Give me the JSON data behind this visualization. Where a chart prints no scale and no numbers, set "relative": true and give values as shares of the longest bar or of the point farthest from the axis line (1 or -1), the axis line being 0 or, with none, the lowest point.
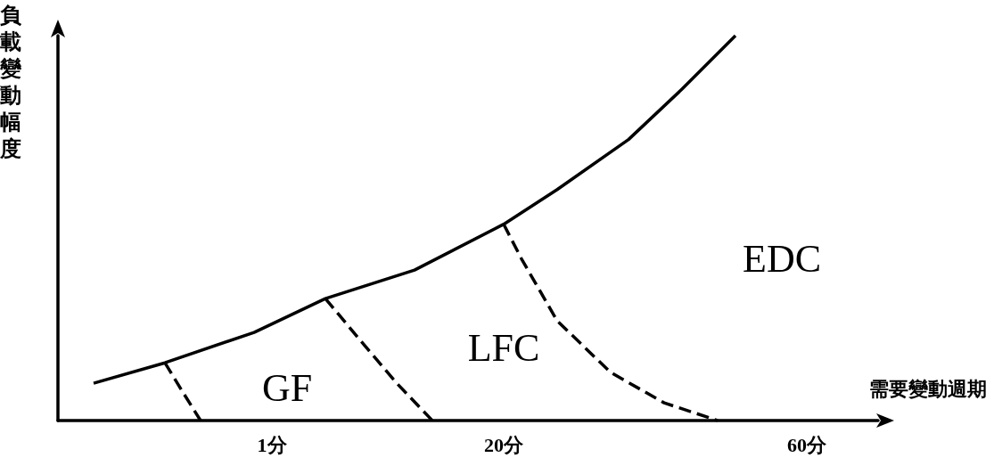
{
  "chart_data": {
    "type": "line",
    "relative": true,
    "xlabel": "需要變動週期",
    "ylabel": "負載變動幅度",
    "grid": false,
    "marker": "none",
    "categories": [
      null,
      null,
      null,
      null,
      null,
      null,
      null,
      null,
      null,
      null,
      null,
      null,
      "1分",
      null,
      null,
      null,
      null,
      null,
      null,
      null,
      null,
      null,
      null,
      null,
      null,
      "20分",
      null,
      null,
      null,
      null,
      null,
      null,
      null,
      null,
      null,
      null,
      null,
      null,
      null,
      null,
      null,
      null,
      "60分",
      null,
      null,
      null,
      null
    ],
    "series": [
      {
        "color": "#000000",
        "line_style": "solid",
        "values": [
          null,
          null,
          0.097,
          null,
          null,
          null,
          0.15,
          null,
          null,
          null,
          null,
          0.229,
          null,
          null,
          null,
          0.317,
          null,
          null,
          null,
          null,
          0.391,
          null,
          null,
          null,
          null,
          0.51,
          null,
          null,
          0.6,
          null,
          null,
          null,
          0.73,
          null,
          null,
          0.861,
          null,
          null,
          1.0,
          null,
          null,
          null,
          null,
          null,
          null,
          null,
          null
        ]
      },
      {
        "color": "#000000",
        "line_style": "dashed",
        "values": [
          null,
          null,
          null,
          null,
          null,
          null,
          0.15,
          0.074,
          0,
          null,
          null,
          null,
          null,
          null,
          null,
          null,
          null,
          null,
          null,
          null,
          null,
          null,
          null,
          null,
          null,
          null,
          null,
          null,
          null,
          null,
          null,
          null,
          null,
          null,
          null,
          null,
          null,
          null,
          null,
          null,
          null,
          null,
          null,
          null,
          null,
          null,
          null
        ]
      },
      {
        "color": "#000000",
        "line_style": "dashed",
        "values": [
          null,
          null,
          null,
          null,
          null,
          null,
          null,
          null,
          null,
          null,
          null,
          null,
          null,
          null,
          null,
          0.317,
          null,
          0.206,
          null,
          0.097,
          null,
          0,
          null,
          null,
          null,
          null,
          null,
          null,
          null,
          null,
          null,
          null,
          null,
          null,
          null,
          null,
          null,
          null,
          null,
          null,
          null,
          null,
          null,
          null,
          null,
          null,
          null
        ]
      },
      {
        "color": "#000000",
        "line_style": "dashed",
        "values": [
          null,
          null,
          null,
          null,
          null,
          null,
          null,
          null,
          null,
          null,
          null,
          null,
          null,
          null,
          null,
          null,
          null,
          null,
          null,
          null,
          null,
          null,
          null,
          null,
          null,
          0.51,
          0.42,
          null,
          0.259,
          null,
          null,
          0.125,
          null,
          null,
          0.046,
          null,
          null,
          0,
          null,
          null,
          null,
          null,
          null,
          null,
          null,
          null,
          null
        ]
      }
    ],
    "annotations": [
      "GF",
      "LFC",
      "EDC"
    ]
  }
}
